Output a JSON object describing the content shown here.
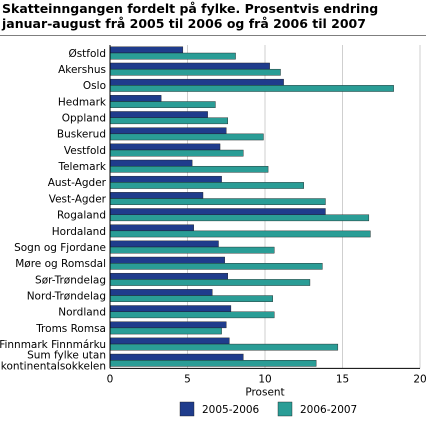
{
  "chart_data": {
    "type": "bar",
    "orientation": "horizontal",
    "title": "Skatteinngangen fordelt på fylke. Prosentvis endring januar-august frå 2005 til 2006 og frå 2006 til 2007",
    "xlabel": "Prosent",
    "xlim": [
      0,
      20
    ],
    "xticks": [
      "0",
      "5",
      "10",
      "15",
      "20"
    ],
    "grid": true,
    "legend_position": "bottom",
    "categories": [
      [
        "Østfold"
      ],
      [
        "Akershus"
      ],
      [
        "Oslo"
      ],
      [
        "Hedmark"
      ],
      [
        "Oppland"
      ],
      [
        "Buskerud"
      ],
      [
        "Vestfold"
      ],
      [
        "Telemark"
      ],
      [
        "Aust-Agder"
      ],
      [
        "Vest-Agder"
      ],
      [
        "Rogaland"
      ],
      [
        "Hordaland"
      ],
      [
        "Sogn og Fjordane"
      ],
      [
        "Møre og Romsdal"
      ],
      [
        "Sør-Trøndelag"
      ],
      [
        "Nord-Trøndelag"
      ],
      [
        "Nordland"
      ],
      [
        "Troms Romsa"
      ],
      [
        "Finnmark Finnmárku"
      ],
      [
        "Sum fylke utan",
        "kontinentalsokkelen"
      ]
    ],
    "series": [
      {
        "name": "2005-2006",
        "color": "#1f3c8c",
        "values": [
          4.7,
          10.3,
          11.2,
          3.3,
          6.3,
          7.5,
          7.1,
          5.3,
          7.2,
          6.0,
          13.9,
          5.4,
          7.0,
          7.4,
          7.6,
          6.6,
          7.8,
          7.5,
          7.7,
          8.6
        ]
      },
      {
        "name": "2006-2007",
        "color": "#2a9d96",
        "values": [
          8.1,
          11.0,
          18.3,
          6.8,
          7.6,
          9.9,
          8.6,
          10.2,
          12.5,
          13.9,
          16.7,
          16.8,
          10.6,
          13.7,
          12.9,
          10.5,
          10.6,
          7.2,
          14.7,
          13.3
        ]
      }
    ]
  }
}
